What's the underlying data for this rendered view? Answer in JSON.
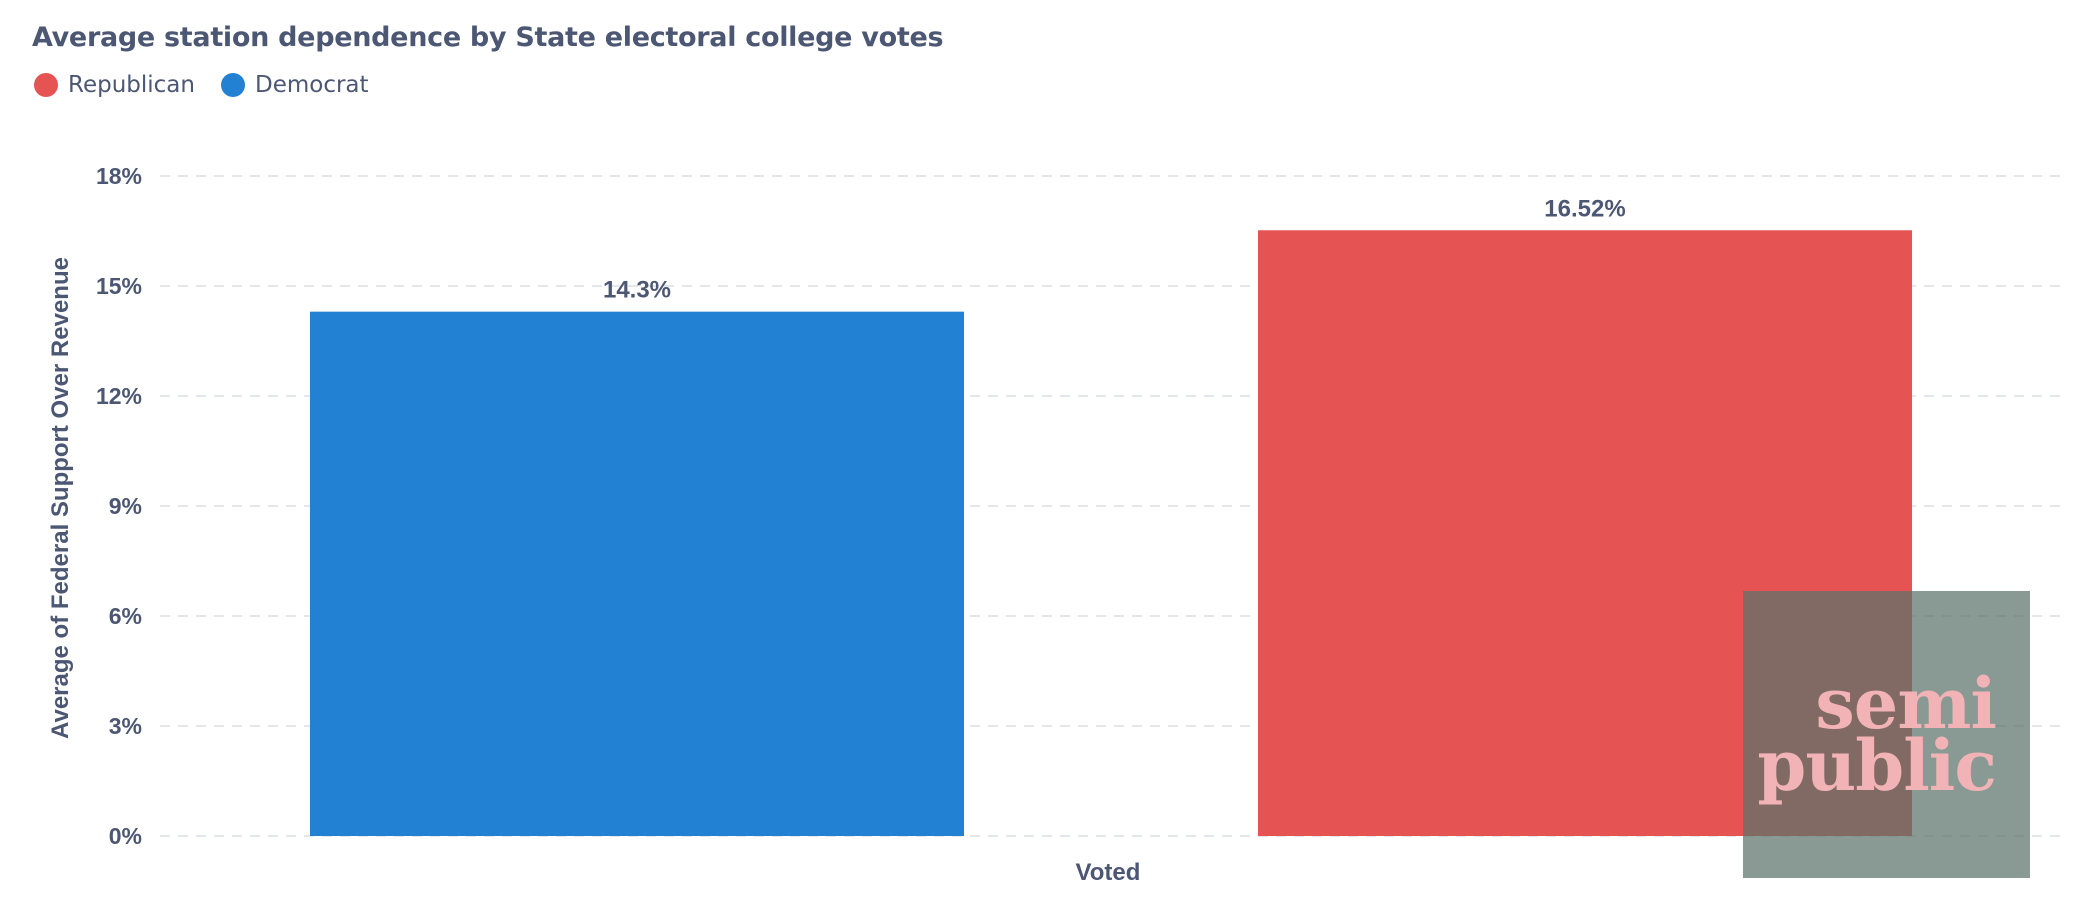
{
  "chart_data": {
    "type": "bar",
    "title": "Average station dependence by State electoral college votes",
    "xlabel": "Voted",
    "ylabel": "Average of Federal Support Over Revenue",
    "ylim": [
      0,
      18
    ],
    "yticks": [
      {
        "value": 0,
        "label": "0%"
      },
      {
        "value": 3,
        "label": "3%"
      },
      {
        "value": 6,
        "label": "6%"
      },
      {
        "value": 9,
        "label": "9%"
      },
      {
        "value": 12,
        "label": "12%"
      },
      {
        "value": 15,
        "label": "15%"
      },
      {
        "value": 18,
        "label": "18%"
      }
    ],
    "grid": true,
    "legend_position": "top-left",
    "legend": [
      {
        "name": "Republican",
        "color": "#e55353"
      },
      {
        "name": "Democrat",
        "color": "#2381d4"
      }
    ],
    "bars": [
      {
        "series": "Democrat",
        "value": 14.3,
        "label": "14.3%",
        "color": "#2381d4"
      },
      {
        "series": "Republican",
        "value": 16.52,
        "label": "16.52%",
        "color": "#e55353"
      }
    ]
  },
  "watermark": {
    "line1": "semi",
    "line2": "public"
  }
}
